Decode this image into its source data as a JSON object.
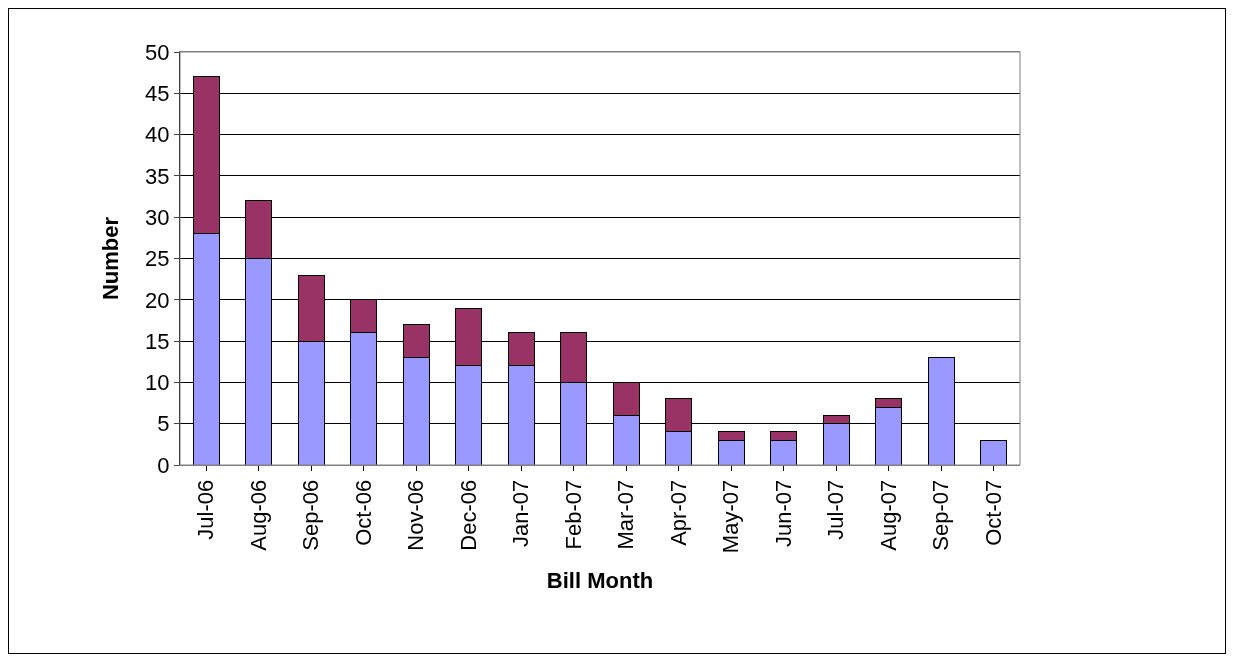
{
  "chart_data": {
    "type": "bar",
    "stacked": true,
    "xlabel": "Bill Month",
    "ylabel": "Number",
    "categories": [
      "Jul-06",
      "Aug-06",
      "Sep-06",
      "Oct-06",
      "Nov-06",
      "Dec-06",
      "Jan-07",
      "Feb-07",
      "Mar-07",
      "Apr-07",
      "May-07",
      "Jun-07",
      "Jul-07",
      "Aug-07",
      "Sep-07",
      "Oct-07"
    ],
    "series": [
      {
        "color": "#9999ff",
        "values": [
          28,
          25,
          15,
          16,
          13,
          12,
          12,
          10,
          6,
          4,
          3,
          3,
          5,
          7,
          13,
          3
        ]
      },
      {
        "color": "#993366",
        "values": [
          19,
          7,
          8,
          4,
          4,
          7,
          4,
          6,
          4,
          4,
          1,
          1,
          1,
          1,
          null,
          null
        ]
      }
    ],
    "ylim": [
      0,
      50
    ],
    "yticks": [
      0,
      5,
      10,
      15,
      20,
      25,
      30,
      35,
      40,
      45,
      50
    ],
    "grid": "y"
  }
}
